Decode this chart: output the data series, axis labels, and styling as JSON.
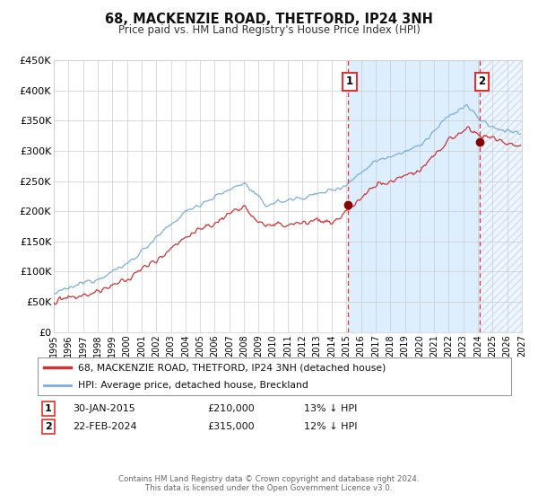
{
  "title": "68, MACKENZIE ROAD, THETFORD, IP24 3NH",
  "subtitle": "Price paid vs. HM Land Registry's House Price Index (HPI)",
  "ylim": [
    0,
    450000
  ],
  "yticks": [
    0,
    50000,
    100000,
    150000,
    200000,
    250000,
    300000,
    350000,
    400000,
    450000
  ],
  "ytick_labels": [
    "£0",
    "£50K",
    "£100K",
    "£150K",
    "£200K",
    "£250K",
    "£300K",
    "£350K",
    "£400K",
    "£450K"
  ],
  "xlim_start": 1995.0,
  "xlim_end": 2027.0,
  "xticks": [
    1995,
    1996,
    1997,
    1998,
    1999,
    2000,
    2001,
    2002,
    2003,
    2004,
    2005,
    2006,
    2007,
    2008,
    2009,
    2010,
    2011,
    2012,
    2013,
    2014,
    2015,
    2016,
    2017,
    2018,
    2019,
    2020,
    2021,
    2022,
    2023,
    2024,
    2025,
    2026,
    2027
  ],
  "hpi_color": "#7aaedd",
  "price_color": "#cc3333",
  "marker_color": "#880000",
  "vline_color": "#dd3333",
  "bg_color": "#ffffff",
  "grid_color": "#cccccc",
  "shaded_region_color": "#ddeeff",
  "event1_x": 2015.08,
  "event1_y": 210000,
  "event2_x": 2024.13,
  "event2_y": 315000,
  "event1_label": "1",
  "event2_label": "2",
  "event1_date": "30-JAN-2015",
  "event1_price": "£210,000",
  "event1_note": "13% ↓ HPI",
  "event2_date": "22-FEB-2024",
  "event2_price": "£315,000",
  "event2_note": "12% ↓ HPI",
  "legend_line1": "68, MACKENZIE ROAD, THETFORD, IP24 3NH (detached house)",
  "legend_line2": "HPI: Average price, detached house, Breckland",
  "footer1": "Contains HM Land Registry data © Crown copyright and database right 2024.",
  "footer2": "This data is licensed under the Open Government Licence v3.0."
}
